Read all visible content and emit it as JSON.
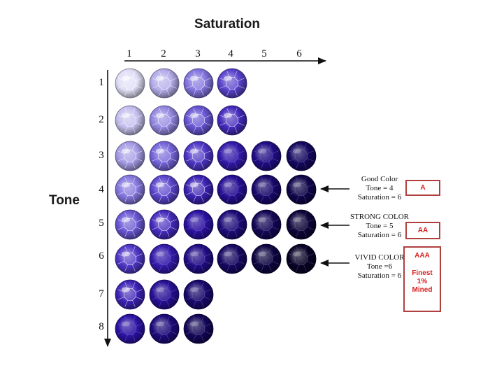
{
  "axes": {
    "x_title": "Saturation",
    "y_title": "Tone",
    "x_ticks": [
      "1",
      "2",
      "3",
      "4",
      "5",
      "6"
    ],
    "y_ticks": [
      "1",
      "2",
      "3",
      "4",
      "5",
      "6",
      "7",
      "8"
    ]
  },
  "grid": {
    "stones_per_row": [
      4,
      4,
      6,
      6,
      6,
      6,
      3,
      3
    ],
    "color_scale": [
      "#f0effa",
      "#b8b2ea",
      "#7a6cdc",
      "#4a30c4",
      "#2a10a0",
      "#18086e",
      "#0e0545",
      "#080224"
    ]
  },
  "annotations": [
    {
      "lines": [
        "Good Color",
        "Tone = 4",
        "Saturation = 6"
      ],
      "tone": 4,
      "saturation": 6
    },
    {
      "lines": [
        "STRONG COLOR",
        "Tone = 5",
        "Saturation = 6"
      ],
      "tone": 5,
      "saturation": 6
    },
    {
      "lines": [
        "VIVID COLOR",
        "Tone =6",
        "Saturation = 6"
      ],
      "tone": 6,
      "saturation": 6
    }
  ],
  "grades": [
    {
      "label": "A"
    },
    {
      "label": "AA"
    },
    {
      "label": "AAA",
      "extra": [
        "Finest",
        "1%",
        "Mined"
      ]
    }
  ]
}
